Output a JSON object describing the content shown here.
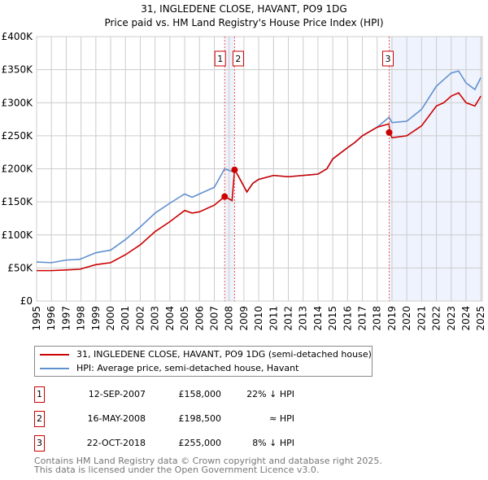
{
  "chart_data": {
    "type": "line",
    "title": "31, INGLEDENE CLOSE, HAVANT, PO9 1DG",
    "subtitle": "Price paid vs. HM Land Registry's House Price Index (HPI)",
    "xlim": [
      1995,
      2025.1
    ],
    "ylim": [
      0,
      400000
    ],
    "yticks": [
      {
        "v": 0,
        "label": "£0"
      },
      {
        "v": 50000,
        "label": "£50K"
      },
      {
        "v": 100000,
        "label": "£100K"
      },
      {
        "v": 150000,
        "label": "£150K"
      },
      {
        "v": 200000,
        "label": "£200K"
      },
      {
        "v": 250000,
        "label": "£250K"
      },
      {
        "v": 300000,
        "label": "£300K"
      },
      {
        "v": 350000,
        "label": "£350K"
      },
      {
        "v": 400000,
        "label": "£400K"
      }
    ],
    "xticks": [
      "1995",
      "1996",
      "1997",
      "1998",
      "1999",
      "2000",
      "2001",
      "2002",
      "2003",
      "2004",
      "2005",
      "2006",
      "2007",
      "2008",
      "2009",
      "2010",
      "2011",
      "2012",
      "2013",
      "2014",
      "2015",
      "2016",
      "2017",
      "2018",
      "2019",
      "2020",
      "2021",
      "2022",
      "2023",
      "2024",
      "2025"
    ],
    "grid": true,
    "series": [
      {
        "name": "31, INGLEDENE CLOSE, HAVANT, PO9 1DG (semi-detached house)",
        "color": "#cc0000",
        "x": [
          1995,
          1996,
          1997,
          1997.9,
          1999,
          2000,
          2001,
          2002,
          2003,
          2004,
          2005,
          2005.5,
          2006,
          2007,
          2007.7,
          2008.2,
          2008.37,
          2008.6,
          2009.2,
          2009.6,
          2010,
          2011,
          2012,
          2013,
          2014,
          2014.6,
          2015,
          2016,
          2016.5,
          2017,
          2018,
          2018.8,
          2018.85,
          2019,
          2020,
          2021,
          2022,
          2022.5,
          2023,
          2023.5,
          2024,
          2024.6,
          2025
        ],
        "y": [
          46000,
          46000,
          47000,
          48000,
          55000,
          58000,
          70000,
          85000,
          105000,
          120000,
          137000,
          133000,
          135000,
          145000,
          158000,
          152000,
          198500,
          190000,
          165000,
          178000,
          184000,
          190000,
          188000,
          190000,
          192000,
          200000,
          215000,
          232000,
          240000,
          250000,
          263000,
          268000,
          255000,
          247000,
          250000,
          265000,
          295000,
          300000,
          310000,
          315000,
          300000,
          295000,
          310000
        ]
      },
      {
        "name": "HPI: Average price, semi-detached house, Havant",
        "color": "#6090d0",
        "x": [
          1995,
          1996,
          1997,
          1997.9,
          1999,
          2000,
          2001,
          2002,
          2003,
          2004,
          2005,
          2005.5,
          2006,
          2007,
          2007.7,
          2008.2,
          2008.37,
          2008.6,
          2009.2,
          2009.6,
          2010,
          2011,
          2012,
          2013,
          2014,
          2014.6,
          2015,
          2016,
          2016.5,
          2017,
          2018,
          2018.8,
          2019,
          2020,
          2021,
          2022,
          2022.5,
          2023,
          2023.5,
          2024,
          2024.6,
          2025
        ],
        "y": [
          59000,
          58000,
          62000,
          63000,
          73000,
          77000,
          93000,
          112000,
          133000,
          148000,
          162000,
          157000,
          162000,
          172000,
          200000,
          196000,
          198500,
          190000,
          165000,
          178000,
          184000,
          190000,
          188000,
          190000,
          192000,
          200000,
          215000,
          232000,
          240000,
          250000,
          263000,
          278000,
          270000,
          272000,
          290000,
          325000,
          335000,
          345000,
          348000,
          330000,
          320000,
          338000
        ]
      }
    ],
    "sales": [
      {
        "id": "1",
        "date": "12-SEP-2007",
        "year": 2007.7,
        "price": "£158,000",
        "value": 158000,
        "hpi": "22% ↓ HPI"
      },
      {
        "id": "2",
        "date": "16-MAY-2008",
        "year": 2008.37,
        "price": "£198,500",
        "value": 198500,
        "hpi": "≈ HPI"
      },
      {
        "id": "3",
        "date": "22-OCT-2018",
        "year": 2018.81,
        "price": "£255,000",
        "value": 255000,
        "hpi": "8% ↓ HPI"
      }
    ],
    "legend_placement": "below"
  },
  "footer": {
    "line1": "Contains HM Land Registry data © Crown copyright and database right 2025.",
    "line2": "This data is licensed under the Open Government Licence v3.0."
  }
}
